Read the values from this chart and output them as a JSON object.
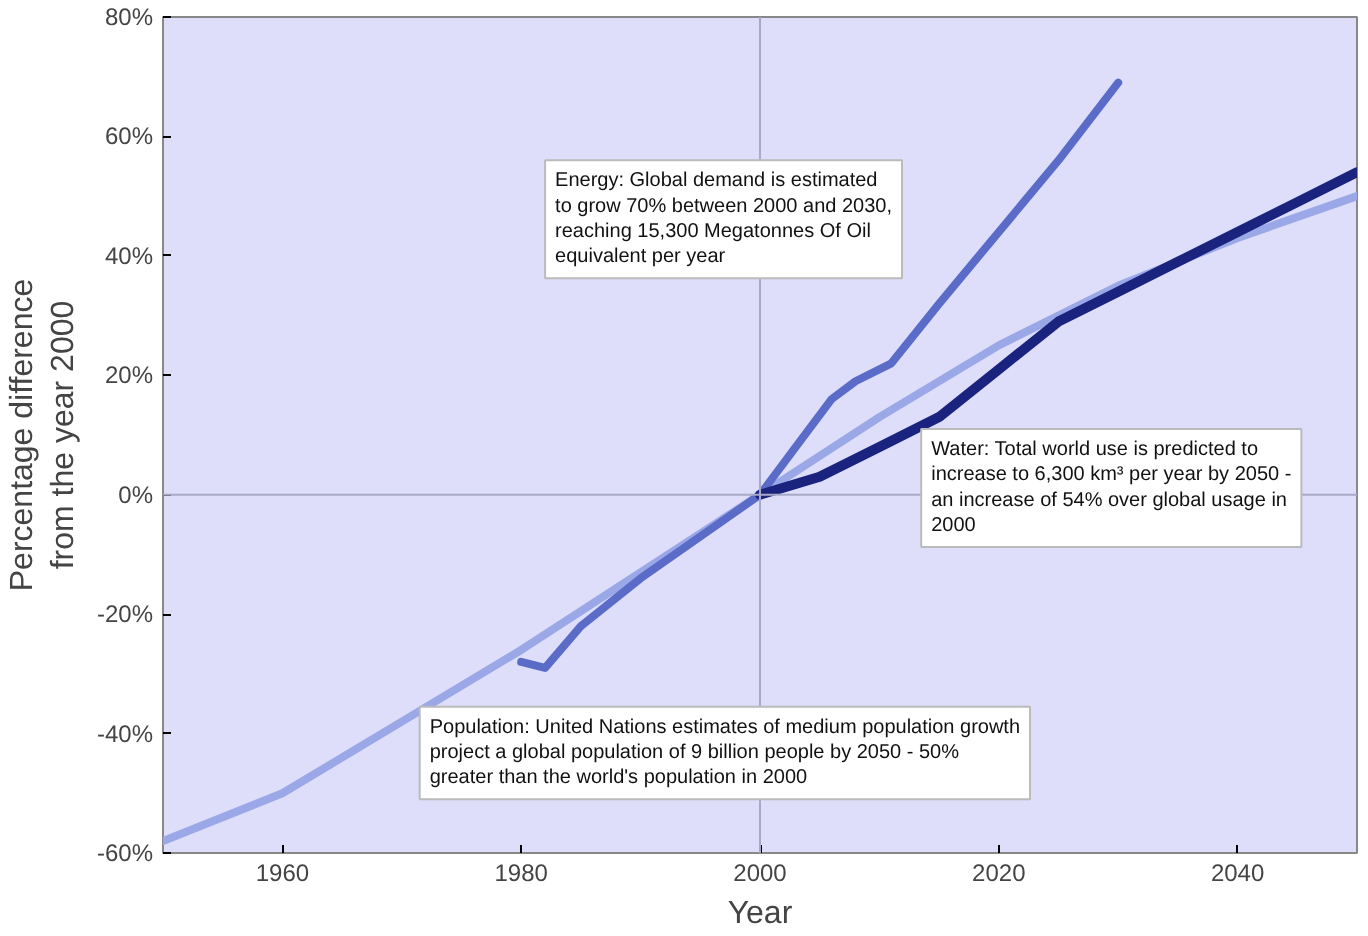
{
  "chart_data": {
    "type": "line",
    "xlabel": "Year",
    "ylabel": "Percentage difference\nfrom the year 2000",
    "xlim": [
      1950,
      2050
    ],
    "ylim": [
      -60,
      80
    ],
    "xticks": [
      1960,
      1980,
      2000,
      2020,
      2040
    ],
    "yticks": [
      {
        "value": -60,
        "label": "-60%"
      },
      {
        "value": -40,
        "label": "-40%"
      },
      {
        "value": -20,
        "label": "-20%"
      },
      {
        "value": 0,
        "label": "0%"
      },
      {
        "value": 20,
        "label": "20%"
      },
      {
        "value": 40,
        "label": "40%"
      },
      {
        "value": 60,
        "label": "60%"
      },
      {
        "value": 80,
        "label": "80%"
      }
    ],
    "grid": false,
    "ref_lines": [
      {
        "axis": "x",
        "value": 2000,
        "color": "#a8a8c8"
      },
      {
        "axis": "y",
        "value": 0,
        "color": "#a8a8c8"
      }
    ],
    "series": [
      {
        "color": "#9aa8e8",
        "x": [
          1950,
          1960,
          1970,
          1980,
          1990,
          2000,
          2010,
          2020,
          2030,
          2040,
          2050
        ],
        "values": [
          -58,
          -50,
          -38,
          -26,
          -13,
          0,
          13,
          25,
          35,
          43,
          50
        ]
      },
      {
        "color": "#5a6cc8",
        "x": [
          1980,
          1982,
          1985,
          1990,
          1995,
          2000,
          2003,
          2006,
          2008,
          2011,
          2015,
          2020,
          2025,
          2030
        ],
        "values": [
          -28,
          -29,
          -22,
          -14,
          -7,
          0,
          8,
          16,
          19,
          22,
          32,
          44,
          56,
          69
        ]
      },
      {
        "color": "#1a237e",
        "x": [
          2000,
          2005,
          2010,
          2015,
          2020,
          2025,
          2030,
          2035,
          2040,
          2045,
          2050
        ],
        "values": [
          0,
          3,
          8,
          13,
          21,
          29,
          34,
          39,
          44,
          49,
          54
        ]
      }
    ],
    "annotations": [
      "Energy: Global demand is estimated to grow 70% between 2000 and 2030, reaching 15,300 Megatonnes Of Oil equivalent per year",
      "Water: Total world use is predicted to increase to 6,300 km³ per year by 2050 - an increase of 54% over global usage in 2000",
      "Population: United Nations estimates of medium population growth project a global population of 9 billion people by 2050 - 50% greater than the world's population in 2000"
    ]
  }
}
